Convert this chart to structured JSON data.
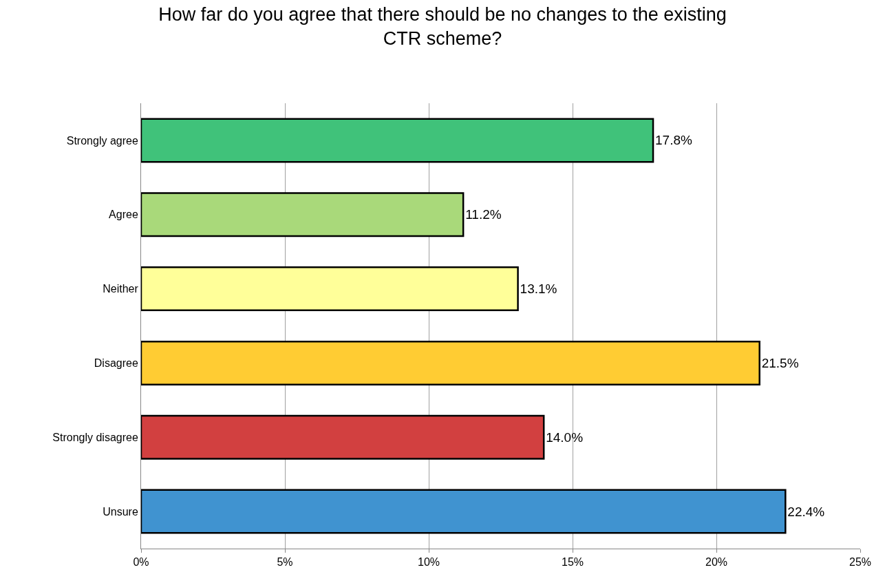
{
  "chart_data": {
    "type": "bar",
    "orientation": "horizontal",
    "title": "How far do you agree that there should be no changes to the existing\nCTR scheme?",
    "categories": [
      "Strongly agree",
      "Agree",
      "Neither",
      "Disagree",
      "Strongly disagree",
      "Unsure"
    ],
    "values": [
      17.8,
      11.2,
      13.1,
      21.5,
      14.0,
      22.4
    ],
    "value_labels": [
      "17.8%",
      "11.2%",
      "13.1%",
      "21.5%",
      "14.0%",
      "22.4%"
    ],
    "colors": [
      "#40c27a",
      "#a9d97a",
      "#ffff99",
      "#ffcc33",
      "#d24040",
      "#4093d0"
    ],
    "xlim": [
      0,
      25
    ],
    "xticks": [
      {
        "value": 0,
        "label": "0%"
      },
      {
        "value": 5,
        "label": "5%"
      },
      {
        "value": 10,
        "label": "10%"
      },
      {
        "value": 15,
        "label": "15%"
      },
      {
        "value": 20,
        "label": "20%"
      },
      {
        "value": 25,
        "label": "25%"
      }
    ],
    "grid": "x",
    "legend": false
  }
}
